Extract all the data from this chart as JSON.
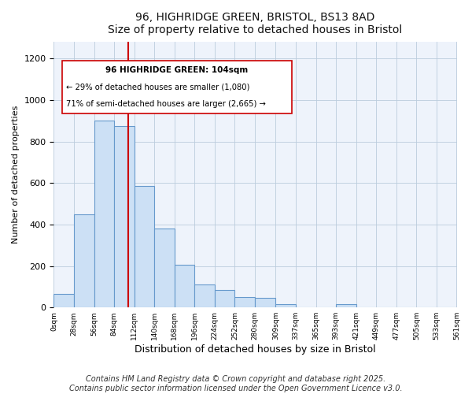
{
  "title": "96, HIGHRIDGE GREEN, BRISTOL, BS13 8AD",
  "subtitle": "Size of property relative to detached houses in Bristol",
  "xlabel": "Distribution of detached houses by size in Bristol",
  "ylabel": "Number of detached properties",
  "bar_color": "#cce0f5",
  "bar_edge_color": "#6699cc",
  "background_color": "#eef3fb",
  "fig_background": "#ffffff",
  "grid_color": "#bbccdd",
  "annotation_box_color": "#ffffff",
  "annotation_box_edge": "#cc0000",
  "annotation_text1": "96 HIGHRIDGE GREEN: 104sqm",
  "annotation_text2": "← 29% of detached houses are smaller (1,080)",
  "annotation_text3": "71% of semi-detached houses are larger (2,665) →",
  "property_line_x": 104,
  "property_line_color": "#cc0000",
  "bin_edges": [
    0,
    28,
    56,
    84,
    112,
    140,
    168,
    196,
    224,
    252,
    280,
    309,
    337,
    365,
    393,
    421,
    449,
    477,
    505,
    533,
    561
  ],
  "bin_counts": [
    65,
    450,
    900,
    875,
    585,
    380,
    205,
    110,
    85,
    50,
    45,
    15,
    0,
    0,
    15,
    0,
    0,
    0,
    0,
    0
  ],
  "ylim": [
    0,
    1280
  ],
  "yticks": [
    0,
    200,
    400,
    600,
    800,
    1000,
    1200
  ],
  "footer_text": "Contains HM Land Registry data © Crown copyright and database right 2025.\nContains public sector information licensed under the Open Government Licence v3.0.",
  "footer_fontsize": 7
}
